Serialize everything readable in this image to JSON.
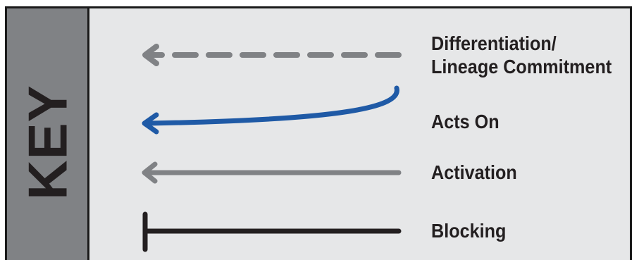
{
  "key": {
    "title": "KEY"
  },
  "legend": {
    "items": [
      {
        "line": "Differentiation/",
        "line2": "Lineage Commitment",
        "style": "dashed-arrow",
        "color": "#808285"
      },
      {
        "label": "Acts On",
        "style": "curved-arrow",
        "color": "#1f5aa6"
      },
      {
        "label": "Activation",
        "style": "solid-arrow",
        "color": "#808285"
      },
      {
        "label": "Blocking",
        "style": "t-bar",
        "color": "#231f20"
      }
    ]
  },
  "colors": {
    "panel_bg": "#e6e7e8",
    "side_bg": "#808285",
    "border": "#1a1a1a",
    "text": "#231f20"
  }
}
